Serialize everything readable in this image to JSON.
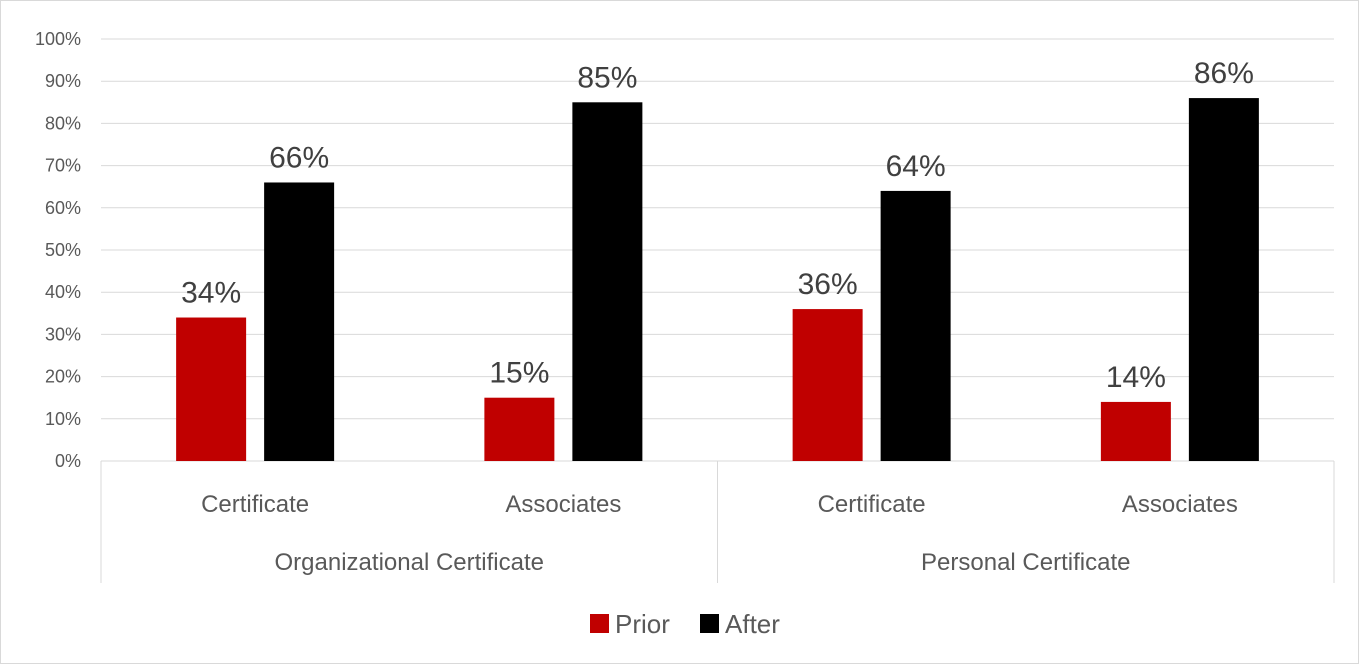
{
  "chart_data": {
    "type": "bar",
    "groups": [
      {
        "label": "Organizational Certificate",
        "categories": [
          "Certificate",
          "Associates"
        ]
      },
      {
        "label": "Personal Certificate",
        "categories": [
          "Certificate",
          "Associates"
        ]
      }
    ],
    "categories": [
      "Certificate",
      "Associates",
      "Certificate",
      "Associates"
    ],
    "series": [
      {
        "name": "Prior",
        "color": "#c00000",
        "values": [
          34,
          15,
          36,
          14
        ],
        "labels": [
          "34%",
          "15%",
          "36%",
          "14%"
        ]
      },
      {
        "name": "After",
        "color": "#000000",
        "values": [
          66,
          85,
          64,
          86
        ],
        "labels": [
          "66%",
          "85%",
          "64%",
          "86%"
        ]
      }
    ],
    "ylim": [
      0,
      100
    ],
    "yticks": [
      "0%",
      "10%",
      "20%",
      "30%",
      "40%",
      "50%",
      "60%",
      "70%",
      "80%",
      "90%",
      "100%"
    ],
    "grid": true,
    "legend_position": "bottom",
    "title": "",
    "xlabel": "",
    "ylabel": ""
  }
}
